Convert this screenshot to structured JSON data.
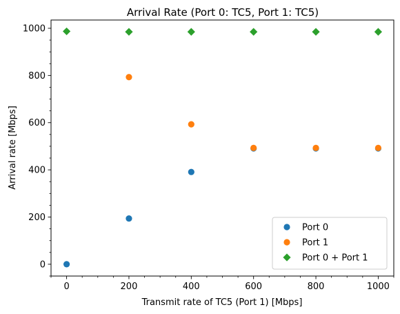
{
  "chart_data": {
    "type": "scatter",
    "title": "Arrival Rate (Port 0: TC5, Port 1: TC5)",
    "xlabel": "Transmit rate of TC5 (Port 1) [Mbps]",
    "ylabel": "Arrival rate [Mbps]",
    "xlim": [
      -50,
      1050
    ],
    "ylim": [
      -50,
      1035
    ],
    "x_ticks": [
      0,
      200,
      400,
      600,
      800,
      1000
    ],
    "y_ticks": [
      0,
      200,
      400,
      600,
      800,
      1000
    ],
    "x_minor_step": 50,
    "y_minor_step": 50,
    "grid": false,
    "legend_position": "lower-right",
    "series": [
      {
        "name": "Port 0",
        "marker": "circle",
        "color": "#1f77b4",
        "x": [
          0,
          200,
          400,
          600,
          800,
          1000
        ],
        "y": [
          0,
          194,
          391,
          491,
          491,
          491
        ]
      },
      {
        "name": "Port 1",
        "marker": "circle",
        "color": "#ff7f0e",
        "x": [
          200,
          400,
          600,
          800,
          1000
        ],
        "y": [
          793,
          593,
          493,
          493,
          493
        ]
      },
      {
        "name": "Port 0 + Port 1",
        "marker": "diamond",
        "color": "#2ca02c",
        "x": [
          0,
          200,
          400,
          600,
          800,
          1000
        ],
        "y": [
          987,
          985,
          985,
          985,
          985,
          985
        ]
      }
    ]
  }
}
